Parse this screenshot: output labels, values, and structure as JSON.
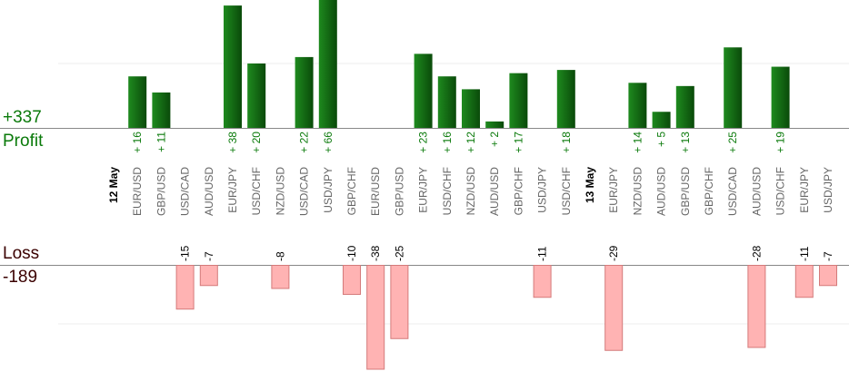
{
  "summary": {
    "profit_total": "+337",
    "profit_label": "Profit",
    "loss_label": "Loss",
    "loss_total": "-189"
  },
  "colors": {
    "profit_bar_light": "#1e8a1e",
    "profit_bar_dark": "#0a4a0a",
    "loss_bar": "#ffb3b3",
    "loss_bar_border": "#d47a7a",
    "profit_text": "#0a7a0a",
    "loss_text": "#000000",
    "category_text": "#666666",
    "date_text": "#000000",
    "axis": "#888888",
    "grid": "#eeeeee"
  },
  "chart_data": {
    "type": "bar",
    "grid": true,
    "categories": [
      {
        "label": "12 May",
        "kind": "date"
      },
      {
        "label": "EUR/USD",
        "profit": "+ 16",
        "profit_value": 16
      },
      {
        "label": "GBP/USD",
        "profit": "+ 11",
        "profit_value": 11
      },
      {
        "label": "USD/CAD",
        "loss": "-15",
        "loss_value": -15
      },
      {
        "label": "AUD/USD",
        "loss": "-7",
        "loss_value": -7
      },
      {
        "label": "EUR/JPY",
        "profit": "+ 38",
        "profit_value": 38
      },
      {
        "label": "USD/CHF",
        "profit": "+ 20",
        "profit_value": 20
      },
      {
        "label": "NZD/USD",
        "loss": "-8",
        "loss_value": -8
      },
      {
        "label": "USD/CAD",
        "profit": "+ 22",
        "profit_value": 22
      },
      {
        "label": "USD/JPY",
        "profit": "+ 66",
        "profit_value": 66
      },
      {
        "label": "GBP/CHF",
        "loss": "-10",
        "loss_value": -10
      },
      {
        "label": "EUR/USD",
        "loss": "-38",
        "loss_value": -38
      },
      {
        "label": "GBP/USD",
        "loss": "-25",
        "loss_value": -25
      },
      {
        "label": "EUR/JPY",
        "profit": "+ 23",
        "profit_value": 23
      },
      {
        "label": "USD/CHF",
        "profit": "+ 16",
        "profit_value": 16
      },
      {
        "label": "NZD/USD",
        "profit": "+ 12",
        "profit_value": 12
      },
      {
        "label": "AUD/USD",
        "profit": "+ 2",
        "profit_value": 2
      },
      {
        "label": "GBP/CHF",
        "profit": "+ 17",
        "profit_value": 17
      },
      {
        "label": "USD/JPY",
        "loss": "-11",
        "loss_value": -11
      },
      {
        "label": "USD/CHF",
        "profit": "+ 18",
        "profit_value": 18
      },
      {
        "label": "13 May",
        "kind": "date"
      },
      {
        "label": "EUR/JPY",
        "loss": "-29",
        "loss_value": -29
      },
      {
        "label": "NZD/USD",
        "profit": "+ 14",
        "profit_value": 14
      },
      {
        "label": "AUD/USD",
        "profit": "+ 5",
        "profit_value": 5
      },
      {
        "label": "GBP/USD",
        "profit": "+ 13",
        "profit_value": 13
      },
      {
        "label": "GBP/CHF"
      },
      {
        "label": "USD/CAD",
        "profit": "+ 25",
        "profit_value": 25
      },
      {
        "label": "AUD/USD",
        "loss": "-28",
        "loss_value": -28
      },
      {
        "label": "USD/CHF",
        "profit": "+ 19",
        "profit_value": 19
      },
      {
        "label": "EUR/JPY",
        "loss": "-11",
        "loss_value": -11
      },
      {
        "label": "USD/JPY",
        "loss": "-7",
        "loss_value": -7
      }
    ],
    "profit_axis_max": 20,
    "loss_axis_min": -20
  }
}
